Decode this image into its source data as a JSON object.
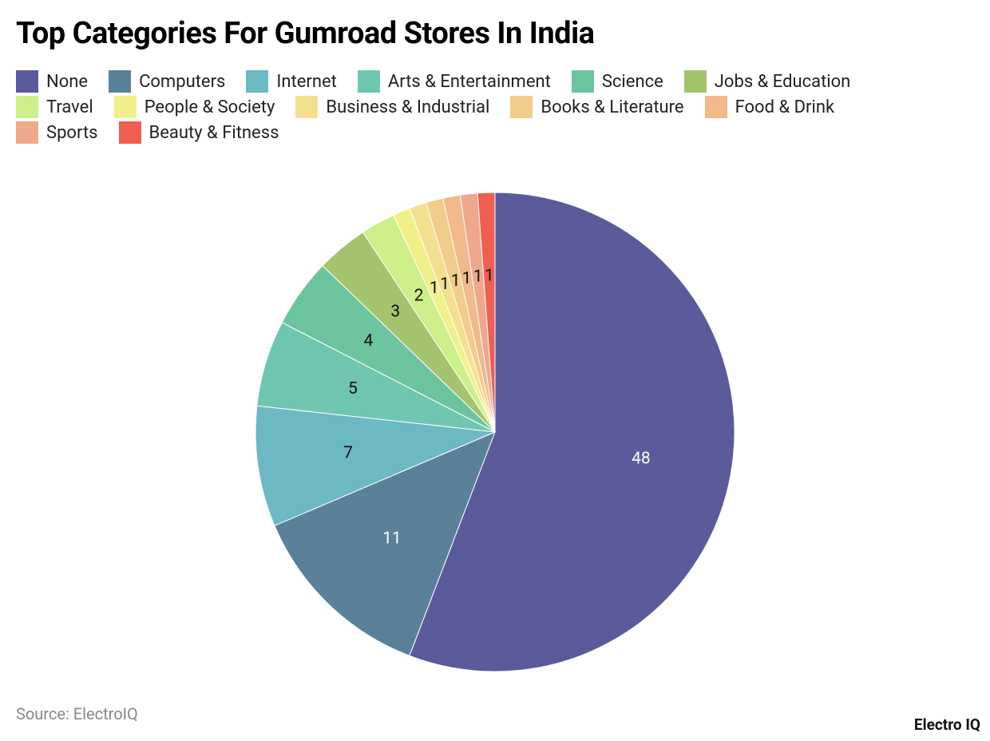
{
  "chart_data": {
    "type": "pie",
    "title": "Top Categories For Gumroad Stores In India",
    "categories": [
      "None",
      "Computers",
      "Internet",
      "Arts & Entertainment",
      "Science",
      "Jobs & Education",
      "Travel",
      "People & Society",
      "Business & Industrial",
      "Books & Literature",
      "Food & Drink",
      "Sports",
      "Beauty & Fitness"
    ],
    "values": [
      48,
      11,
      7,
      5,
      4,
      3,
      2,
      1,
      1,
      1,
      1,
      1,
      1
    ],
    "colors": [
      "#5b5b9b",
      "#5a8199",
      "#6cb8c3",
      "#6fc6b0",
      "#6cc49f",
      "#a3c46c",
      "#cdef8a",
      "#f1ef8a",
      "#f3e08f",
      "#f2cc8a",
      "#f2b98a",
      "#f0a88d",
      "#ef5e50"
    ],
    "source": "Source: ElectroIQ",
    "brand": "Electro IQ"
  }
}
